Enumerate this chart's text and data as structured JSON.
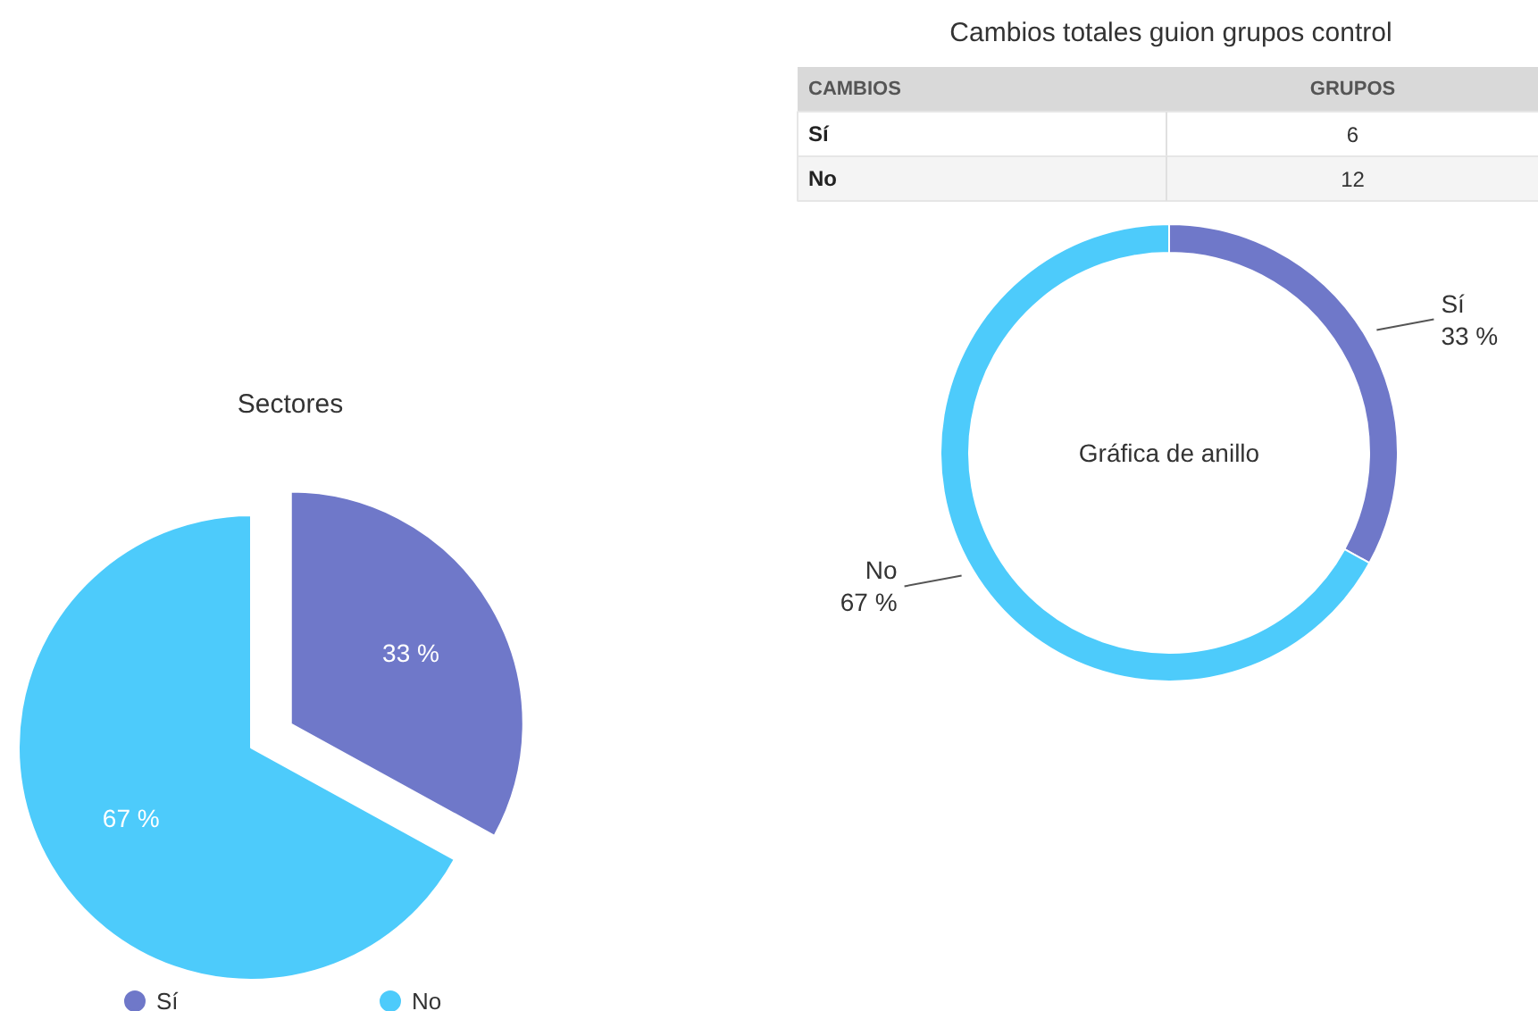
{
  "chart_data": [
    {
      "type": "other",
      "title": "Cambios totales guion grupos control",
      "xlabel": "CAMBIOS",
      "ylabel": "GRUPOS",
      "categories": [
        "Sí",
        "No"
      ],
      "values": [
        6,
        12
      ],
      "data_labels": true
    },
    {
      "type": "donut",
      "categories": [
        "Sí",
        "No"
      ],
      "values": [
        33,
        67
      ],
      "colors": [
        "#6f78c9",
        "#4dcbfb"
      ],
      "value_labels": [
        "33 %",
        "67 %"
      ],
      "annotations": [
        "Gráfica de anillo"
      ]
    },
    {
      "type": "pie",
      "title": "Sectores",
      "categories": [
        "Sí",
        "No"
      ],
      "values": [
        33,
        67
      ],
      "colors": [
        "#6f78c9",
        "#4dcbfb"
      ],
      "value_labels": [
        "33 %",
        "67 %"
      ],
      "legend": "bottom"
    }
  ]
}
